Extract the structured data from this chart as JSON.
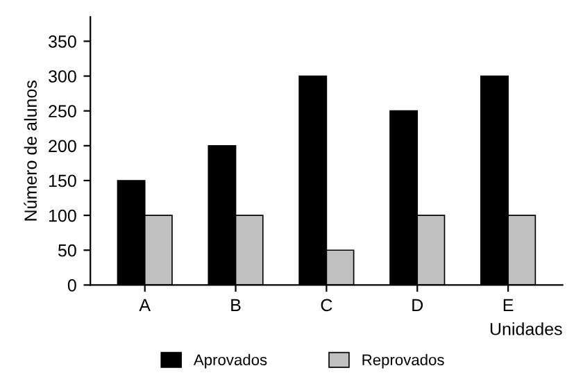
{
  "chart_data": {
    "type": "bar",
    "ylabel": "Número de alunos",
    "xlabel": "Unidades",
    "categories": [
      "A",
      "B",
      "C",
      "D",
      "E"
    ],
    "series": [
      {
        "name": "Aprovados",
        "color": "#000000",
        "values": [
          150,
          200,
          300,
          250,
          300
        ]
      },
      {
        "name": "Reprovados",
        "color": "#c0c0c0",
        "values": [
          100,
          100,
          50,
          100,
          100
        ]
      }
    ],
    "ylim": [
      0,
      385
    ],
    "yticks": [
      0,
      50,
      100,
      150,
      200,
      250,
      300,
      350
    ],
    "grid": false,
    "legend": "bottom"
  }
}
